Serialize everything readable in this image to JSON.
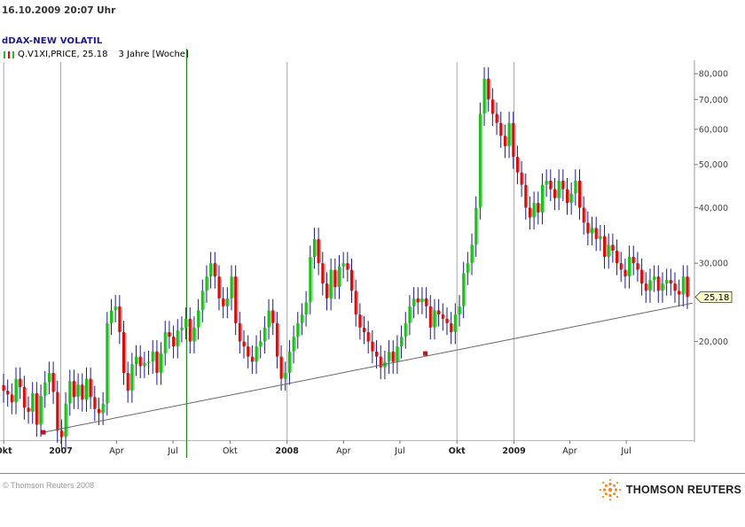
{
  "header": {
    "datetime": "16.10.2009   20:07 Uhr"
  },
  "chart": {
    "title": "dDAX-NEW VOLATIL",
    "legend_series": "Q.V1XI,PRICE, 25.18",
    "legend_period": "3 Jahre [Woche]",
    "last_value_label": "25,18"
  },
  "footer": {
    "copyright": "© Thomson Reuters 2008",
    "logo_text": "THOMSON REUTERS"
  },
  "colors": {
    "up": "#22bb22",
    "down": "#cc1111",
    "up_light": "#88dd88",
    "down_light": "#ee8888",
    "trendline": "#666666",
    "vline": "#228822",
    "axis_text": "#444444",
    "title": "#1a1a8c",
    "value_tag": "#ffffcc"
  },
  "chart_data": {
    "type": "candlestick",
    "scale": "log",
    "ylim": [
      12,
      85
    ],
    "y_ticks": [
      20,
      30,
      40,
      50,
      60,
      70,
      80
    ],
    "y_tick_labels": [
      "20,000",
      "30,000",
      "40,000",
      "50,000",
      "60,000",
      "70,000",
      "80,000"
    ],
    "x_ticks": [
      {
        "label": "Okt",
        "date": "2006-10-01",
        "bold": true
      },
      {
        "label": "2007",
        "date": "2007-01-01",
        "bold": true
      },
      {
        "label": "Apr",
        "date": "2007-04-01",
        "bold": false
      },
      {
        "label": "Jul",
        "date": "2007-07-01",
        "bold": false
      },
      {
        "label": "Okt",
        "date": "2007-10-01",
        "bold": false
      },
      {
        "label": "2008",
        "date": "2008-01-01",
        "bold": true
      },
      {
        "label": "Apr",
        "date": "2008-04-01",
        "bold": false
      },
      {
        "label": "Jul",
        "date": "2008-07-01",
        "bold": false
      },
      {
        "label": "Okt",
        "date": "2008-10-01",
        "bold": true
      },
      {
        "label": "2009",
        "date": "2009-01-01",
        "bold": true
      },
      {
        "label": "Apr",
        "date": "2009-04-01",
        "bold": false
      },
      {
        "label": "Jul",
        "date": "2009-07-01",
        "bold": false
      }
    ],
    "weekly_close": [
      15.5,
      15.2,
      14.6,
      16.5,
      15.8,
      14.2,
      13.9,
      15.3,
      13.0,
      15.1,
      16.2,
      17.0,
      15.4,
      12.6,
      12.2,
      14.5,
      16.3,
      15.0,
      16.0,
      14.8,
      16.5,
      15.0,
      14.1,
      13.8,
      14.5,
      22.0,
      23.5,
      24.0,
      21.0,
      17.0,
      15.5,
      17.8,
      18.5,
      17.6,
      17.9,
      18.0,
      19.0,
      17.0,
      18.8,
      21.0,
      20.5,
      19.5,
      21.2,
      21.5,
      22.5,
      20.0,
      21.5,
      23.5,
      26.0,
      28.0,
      30.0,
      28.0,
      25.0,
      24.0,
      25.0,
      28.0,
      22.0,
      20.0,
      19.5,
      18.5,
      18.0,
      19.5,
      20.0,
      21.5,
      23.5,
      22.0,
      18.5,
      16.5,
      17.0,
      19.0,
      20.5,
      22.0,
      23.0,
      24.5,
      31.0,
      34.0,
      30.0,
      27.0,
      25.0,
      29.0,
      26.5,
      29.5,
      30.0,
      29.0,
      26.0,
      23.0,
      21.5,
      21.0,
      20.0,
      19.0,
      18.5,
      17.5,
      18.0,
      19.0,
      18.0,
      19.5,
      20.5,
      22.0,
      24.0,
      25.0,
      24.5,
      25.0,
      24.0,
      21.5,
      23.5,
      23.0,
      22.5,
      22.0,
      21.0,
      23.0,
      24.0,
      28.5,
      30.0,
      33.0,
      40.0,
      65.0,
      78.0,
      70.0,
      65.0,
      62.0,
      58.0,
      55.0,
      62.0,
      52.0,
      48.0,
      45.0,
      40.0,
      38.0,
      41.0,
      39.0,
      45.0,
      46.0,
      44.0,
      42.0,
      46.0,
      44.0,
      41.0,
      43.0,
      46.0,
      40.0,
      37.0,
      35.0,
      36.0,
      34.0,
      34.5,
      31.0,
      33.0,
      32.0,
      30.0,
      29.0,
      28.0,
      31.0,
      30.0,
      29.0,
      27.0,
      26.0,
      27.5,
      28.0,
      26.0,
      27.0,
      27.5,
      27.0,
      26.0,
      25.5,
      28.0,
      25.18
    ],
    "trendline": {
      "from": {
        "date": "2006-12-04",
        "value": 12.5
      },
      "marker": {
        "date": "2008-08-11",
        "value": 18.8
      },
      "to": {
        "date": "2009-10-16",
        "value": 24.4
      }
    },
    "vertical_marker_date": "2007-07-23",
    "last_value": 25.18
  }
}
